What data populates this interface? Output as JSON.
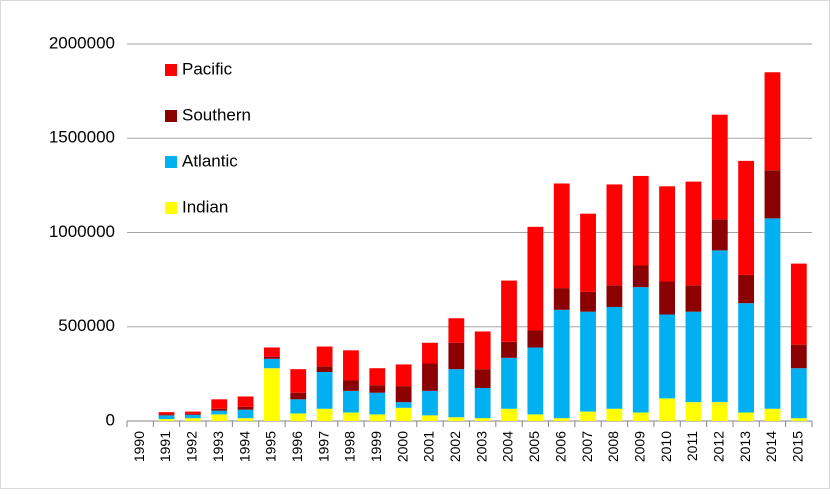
{
  "chart_data": {
    "type": "stacked_bar",
    "categories": [
      "1990",
      "1991",
      "1992",
      "1993",
      "1994",
      "1995",
      "1996",
      "1997",
      "1998",
      "1999",
      "2000",
      "2001",
      "2002",
      "2003",
      "2004",
      "2005",
      "2006",
      "2007",
      "2008",
      "2009",
      "2010",
      "2011",
      "2012",
      "2013",
      "2014",
      "2015"
    ],
    "series": [
      {
        "name": "Indian",
        "color": "#ffff00",
        "values": [
          0,
          10000,
          15000,
          35000,
          15000,
          280000,
          40000,
          65000,
          45000,
          35000,
          70000,
          30000,
          20000,
          15000,
          65000,
          35000,
          15000,
          50000,
          65000,
          45000,
          120000,
          100000,
          100000,
          45000,
          65000,
          15000
        ]
      },
      {
        "name": "Atlantic",
        "color": "#00b0f0",
        "values": [
          0,
          20000,
          18000,
          20000,
          45000,
          50000,
          75000,
          195000,
          115000,
          115000,
          30000,
          130000,
          255000,
          160000,
          270000,
          355000,
          575000,
          530000,
          540000,
          665000,
          445000,
          480000,
          805000,
          580000,
          1010000,
          265000
        ]
      },
      {
        "name": "Southern",
        "color": "#8b0000",
        "values": [
          0,
          5000,
          5000,
          10000,
          15000,
          10000,
          35000,
          30000,
          55000,
          40000,
          85000,
          145000,
          140000,
          100000,
          85000,
          90000,
          115000,
          105000,
          115000,
          115000,
          175000,
          140000,
          165000,
          150000,
          255000,
          125000
        ]
      },
      {
        "name": "Pacific",
        "color": "#ff0000",
        "values": [
          0,
          12000,
          12000,
          50000,
          55000,
          50000,
          125000,
          105000,
          160000,
          90000,
          115000,
          110000,
          130000,
          200000,
          325000,
          550000,
          555000,
          415000,
          535000,
          475000,
          505000,
          550000,
          555000,
          605000,
          520000,
          430000
        ]
      }
    ],
    "ylim": [
      0,
      2000000
    ],
    "yticks": [
      0,
      500000,
      1000000,
      1500000,
      2000000
    ],
    "grid": true,
    "legend": "upper left"
  }
}
